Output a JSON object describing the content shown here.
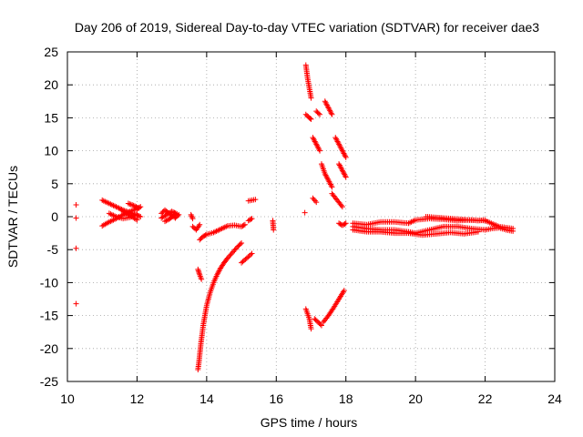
{
  "chart_data": {
    "type": "scatter",
    "title": "Day 206 of 2019, Sidereal Day-to-day VTEC variation (SDTVAR) for receiver dae3",
    "xlabel": "GPS time / hours",
    "ylabel": "SDTVAR / TECUs",
    "xlim": [
      10,
      24
    ],
    "ylim": [
      -25,
      25
    ],
    "xticks": [
      10,
      12,
      14,
      16,
      18,
      20,
      22,
      24
    ],
    "yticks": [
      -25,
      -20,
      -15,
      -10,
      -5,
      0,
      5,
      10,
      15,
      20,
      25
    ],
    "grid": true,
    "marker": "+",
    "color": "#ff0000",
    "segments": [
      {
        "x": [
          10.25
        ],
        "y": [
          1.8
        ]
      },
      {
        "x": [
          10.25
        ],
        "y": [
          -0.2
        ]
      },
      {
        "x": [
          10.25
        ],
        "y": [
          -4.8
        ]
      },
      {
        "x": [
          10.25
        ],
        "y": [
          -13.2
        ]
      },
      {
        "x": [
          11.0,
          11.2,
          11.4,
          11.6,
          11.8,
          12.0,
          12.1
        ],
        "y": [
          2.5,
          2.0,
          1.5,
          1.0,
          0.6,
          0.2,
          0.0
        ]
      },
      {
        "x": [
          11.0,
          11.2,
          11.4,
          11.6,
          11.8,
          12.0,
          12.1
        ],
        "y": [
          -1.4,
          -0.8,
          -0.3,
          0.3,
          0.8,
          1.2,
          1.5
        ]
      },
      {
        "x": [
          11.2,
          11.4,
          11.6,
          11.8,
          12.0
        ],
        "y": [
          0.5,
          0.0,
          -0.3,
          -0.1,
          0.4
        ]
      },
      {
        "x": [
          11.55,
          11.7,
          11.85,
          12.0
        ],
        "y": [
          1.0,
          0.5,
          0.0,
          -0.5
        ]
      },
      {
        "x": [
          11.75,
          11.9,
          12.05
        ],
        "y": [
          2.0,
          1.7,
          1.3
        ]
      },
      {
        "x": [
          12.7,
          12.8,
          12.9,
          13.0,
          13.1,
          13.2
        ],
        "y": [
          0.5,
          1.0,
          0.6,
          0.2,
          -0.2,
          0.3
        ]
      },
      {
        "x": [
          12.7,
          12.85,
          13.0,
          13.15
        ],
        "y": [
          -0.2,
          0.3,
          0.8,
          0.4
        ]
      },
      {
        "x": [
          12.8,
          12.95,
          13.1
        ],
        "y": [
          -0.7,
          -0.3,
          0.5
        ]
      },
      {
        "x": [
          13.55,
          13.6
        ],
        "y": [
          0.3,
          -0.3
        ]
      },
      {
        "x": [
          13.6,
          13.7,
          13.8
        ],
        "y": [
          -1.5,
          -2.0,
          -1.2
        ]
      },
      {
        "x": [
          13.75,
          13.8,
          13.85
        ],
        "y": [
          -8.0,
          -8.8,
          -9.5
        ]
      },
      {
        "x": [
          13.8,
          13.9,
          14.0,
          14.2,
          14.4,
          14.6,
          14.8,
          15.0,
          15.1
        ],
        "y": [
          -3.5,
          -3.0,
          -2.7,
          -2.4,
          -1.9,
          -1.4,
          -1.3,
          -1.5,
          -1.2
        ]
      },
      {
        "x": [
          13.75,
          13.78,
          13.81,
          13.84,
          13.87,
          13.9,
          13.95,
          14.0,
          14.1,
          14.2,
          14.3,
          14.4,
          14.5,
          14.6,
          14.7,
          14.8,
          14.9,
          15.0
        ],
        "y": [
          -23.2,
          -22.0,
          -20.5,
          -19.0,
          -17.8,
          -16.5,
          -15.0,
          -13.5,
          -11.5,
          -10.0,
          -8.8,
          -7.8,
          -7.0,
          -6.3,
          -5.7,
          -5.1,
          -4.5,
          -4.0
        ]
      },
      {
        "x": [
          15.0,
          15.15,
          15.3
        ],
        "y": [
          -7.0,
          -6.3,
          -5.6
        ]
      },
      {
        "x": [
          15.2,
          15.3,
          15.4
        ],
        "y": [
          2.4,
          2.5,
          2.6
        ]
      },
      {
        "x": [
          15.2,
          15.3
        ],
        "y": [
          -0.6,
          -0.3
        ]
      },
      {
        "x": [
          15.9,
          15.92
        ],
        "y": [
          -0.6,
          -2.0
        ]
      },
      {
        "x": [
          16.82
        ],
        "y": [
          0.6
        ]
      },
      {
        "x": [
          16.85,
          16.9,
          16.95,
          17.0
        ],
        "y": [
          23.0,
          21.0,
          19.5,
          18.0
        ]
      },
      {
        "x": [
          16.85,
          16.95,
          17.0
        ],
        "y": [
          15.5,
          15.0,
          14.8
        ]
      },
      {
        "x": [
          17.15,
          17.25
        ],
        "y": [
          16.0,
          15.5
        ]
      },
      {
        "x": [
          17.4,
          17.5,
          17.6
        ],
        "y": [
          17.5,
          16.5,
          15.5
        ]
      },
      {
        "x": [
          17.05,
          17.15,
          17.25
        ],
        "y": [
          12.0,
          11.0,
          10.0
        ]
      },
      {
        "x": [
          17.3,
          17.4,
          17.5,
          17.6
        ],
        "y": [
          8.0,
          6.5,
          5.5,
          4.5
        ]
      },
      {
        "x": [
          17.7,
          17.8,
          17.9,
          18.0
        ],
        "y": [
          12.0,
          11.0,
          10.0,
          9.0
        ]
      },
      {
        "x": [
          17.8,
          17.9,
          18.0
        ],
        "y": [
          8.0,
          7.0,
          6.0
        ]
      },
      {
        "x": [
          17.05,
          17.15
        ],
        "y": [
          2.8,
          2.2
        ]
      },
      {
        "x": [
          17.6,
          17.75,
          17.9
        ],
        "y": [
          3.5,
          2.5,
          1.5
        ]
      },
      {
        "x": [
          16.85,
          16.95,
          17.0
        ],
        "y": [
          -14.0,
          -15.5,
          -17.0
        ]
      },
      {
        "x": [
          17.1,
          17.2,
          17.3
        ],
        "y": [
          -15.5,
          -16.0,
          -16.5
        ]
      },
      {
        "x": [
          17.35,
          17.5,
          17.65,
          17.8,
          17.95
        ],
        "y": [
          -16.0,
          -15.0,
          -13.8,
          -12.5,
          -11.2
        ]
      },
      {
        "x": [
          17.8,
          17.9,
          18.0
        ],
        "y": [
          -1.0,
          -1.3,
          -1.0
        ]
      },
      {
        "x": [
          18.2,
          18.6,
          19.0,
          19.4,
          19.8,
          20.0,
          20.4,
          20.8,
          21.2,
          21.6,
          22.0
        ],
        "y": [
          -1.5,
          -1.8,
          -2.0,
          -2.0,
          -2.3,
          -2.5,
          -2.0,
          -1.5,
          -1.5,
          -1.8,
          -2.0
        ]
      },
      {
        "x": [
          18.2,
          18.6,
          19.0,
          19.4,
          19.8,
          20.0,
          20.4,
          20.8,
          21.2,
          21.6,
          22.0,
          22.4,
          22.8
        ],
        "y": [
          -1.0,
          -1.2,
          -0.8,
          -0.8,
          -1.0,
          -0.5,
          -0.3,
          -0.4,
          -0.6,
          -0.5,
          -0.6,
          -1.5,
          -1.8
        ]
      },
      {
        "x": [
          18.2,
          18.6,
          19.0,
          19.4,
          19.8,
          20.2,
          20.6,
          21.0,
          21.4,
          21.8
        ],
        "y": [
          -2.0,
          -2.3,
          -2.3,
          -2.5,
          -2.5,
          -2.8,
          -2.6,
          -2.4,
          -2.6,
          -2.3
        ]
      },
      {
        "x": [
          20.3,
          20.8,
          21.3,
          21.8,
          22.0
        ],
        "y": [
          0.0,
          -0.2,
          -0.4,
          -0.6,
          -0.5
        ]
      },
      {
        "x": [
          22.0,
          22.2,
          22.4,
          22.6,
          22.8
        ],
        "y": [
          -2.0,
          -1.8,
          -1.7,
          -2.0,
          -2.2
        ]
      }
    ]
  }
}
